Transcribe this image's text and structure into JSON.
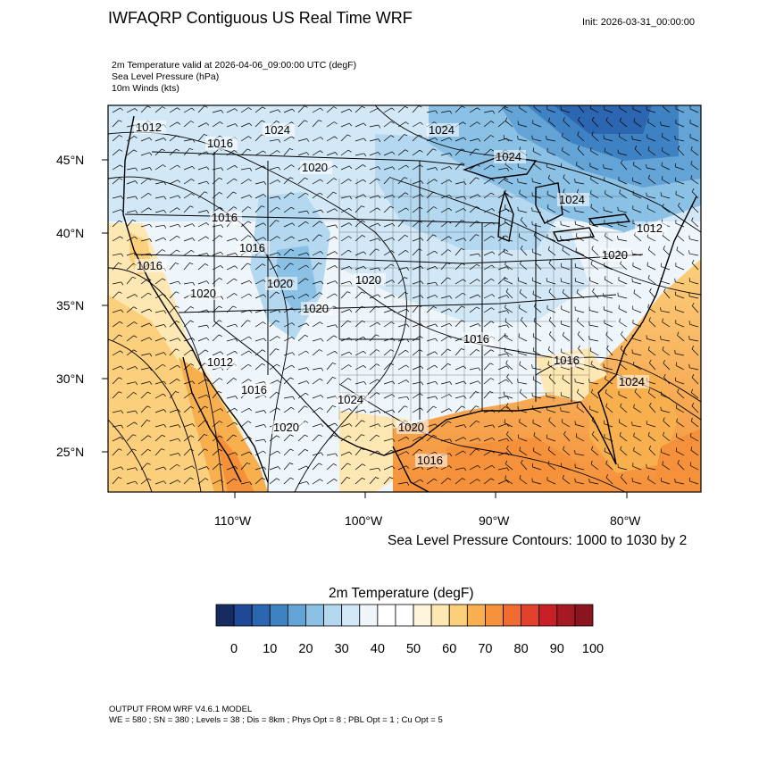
{
  "header": {
    "title": "IWFAQRP Contiguous US Real Time WRF",
    "init": "Init: 2026-03-31_00:00:00",
    "fields": [
      "2m Temperature valid at 2026-04-06_09:00:00 UTC   (degF)",
      "Sea Level Pressure   (hPa)",
      "10m Winds   (kts)"
    ]
  },
  "map": {
    "lat_labels": [
      "45°N",
      "40°N",
      "35°N",
      "30°N",
      "25°N"
    ],
    "lon_labels": [
      "110°W",
      "100°W",
      "90°W",
      "80°W"
    ],
    "isobar_labels": [
      "1012",
      "1016",
      "1024",
      "1020",
      "1024",
      "1024",
      "1016",
      "1024",
      "1016",
      "1020",
      "1016",
      "1020",
      "1020",
      "1020",
      "1016",
      "1012",
      "1016",
      "1024",
      "1020",
      "1020",
      "1016",
      "1016",
      "1024",
      "1012",
      "1020"
    ],
    "contour_note": "Sea Level Pressure Contours: 1000 to 1030 by 2"
  },
  "colorbar": {
    "title": "2m Temperature  (degF)",
    "labels": [
      "0",
      "10",
      "20",
      "30",
      "40",
      "50",
      "60",
      "70",
      "80",
      "90",
      "100"
    ],
    "colors": [
      "#172b61",
      "#1f4995",
      "#2c65b0",
      "#3f82c3",
      "#63a3d6",
      "#8cc1e6",
      "#b3d8f0",
      "#d2e8f6",
      "#eef6fb",
      "#ffffff",
      "#ffffff",
      "#fff4dc",
      "#fde7b3",
      "#fbcf7c",
      "#f8b04f",
      "#f5913a",
      "#ef6b2f",
      "#e2412b",
      "#c82027",
      "#a51a22",
      "#8a1420"
    ]
  },
  "footer": {
    "line1": "OUTPUT FROM WRF V4.6.1 MODEL",
    "line2": "WE = 580 ; SN = 380 ; Levels = 38 ; Dis = 8km ; Phys Opt = 8 ; PBL Opt = 1 ; Cu Opt = 5"
  }
}
